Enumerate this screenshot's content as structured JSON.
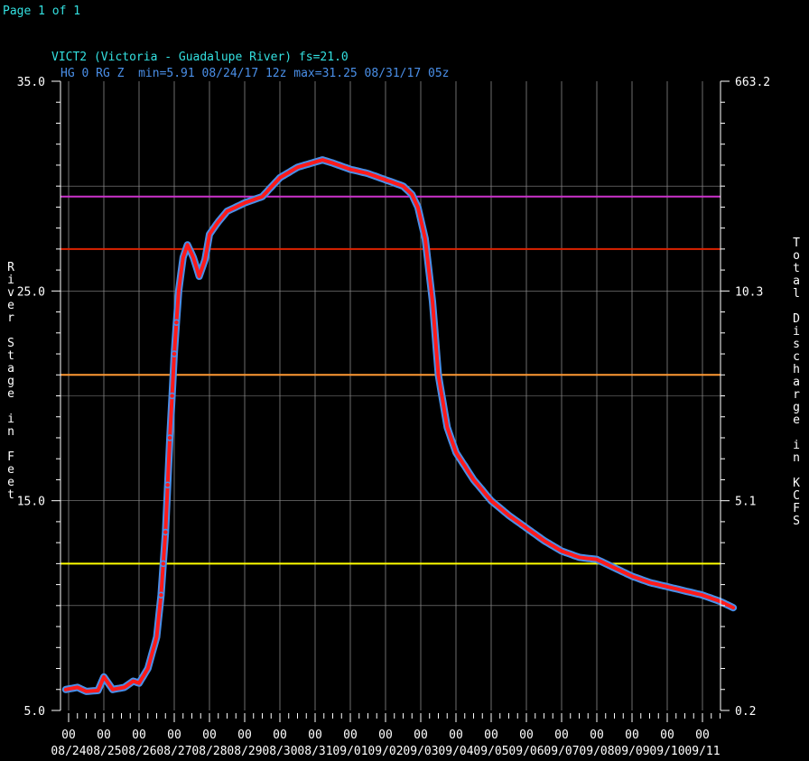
{
  "page_label": "Page 1 of 1",
  "chart_data": {
    "type": "line",
    "title": "VICT2 (Victoria - Guadalupe River) fs=21.0",
    "subtitle": "HG 0 RG Z  min=5.91 08/24/17 12z max=31.25 08/31/17 05z",
    "ylabel": "River Stage in Feet",
    "y2label": "Total Discharge in KCFS",
    "ylim": [
      5.0,
      35.0
    ],
    "y_ticks": [
      "35.0",
      "25.0",
      "15.0",
      "5.0"
    ],
    "y2_ticks": [
      "663.2",
      "10.3",
      "5.1",
      "0.2"
    ],
    "x_range_days": [
      "08/24/17 00z",
      "09/12/17 06z"
    ],
    "x_hour_labels": [
      "00",
      "00",
      "00",
      "00",
      "00",
      "00",
      "00",
      "00",
      "00",
      "00",
      "00",
      "00",
      "00",
      "00",
      "00",
      "00",
      "00",
      "00",
      "00"
    ],
    "x_date_labels": [
      "08/24",
      "08/25",
      "08/26",
      "08/27",
      "08/28",
      "08/29",
      "08/30",
      "08/31",
      "09/01",
      "09/02",
      "09/03",
      "09/04",
      "09/05",
      "09/06",
      "09/07",
      "09/08",
      "09/09",
      "09/10",
      "09/11"
    ],
    "thresholds": [
      {
        "stage": 29.5,
        "color": "#cc33cc"
      },
      {
        "stage": 27.0,
        "color": "#dd2200"
      },
      {
        "stage": 21.0,
        "color": "#ff9933"
      },
      {
        "stage": 12.0,
        "color": "#ffff00"
      }
    ],
    "grid": true,
    "series": [
      {
        "line_color": "#ff1a1a",
        "marker_color": "#4a8fe8",
        "points": [
          [
            "08/23 22z",
            6.0
          ],
          [
            "08/24 06z",
            6.1
          ],
          [
            "08/24 12z",
            5.91
          ],
          [
            "08/24 20z",
            5.95
          ],
          [
            "08/25 00z",
            6.6
          ],
          [
            "08/25 06z",
            6.0
          ],
          [
            "08/25 14z",
            6.1
          ],
          [
            "08/25 20z",
            6.4
          ],
          [
            "08/26 00z",
            6.3
          ],
          [
            "08/26 06z",
            7.0
          ],
          [
            "08/26 12z",
            8.5
          ],
          [
            "08/26 15z",
            10.5
          ],
          [
            "08/26 18z",
            13.5
          ],
          [
            "08/26 21z",
            18.0
          ],
          [
            "08/27 00z",
            22.0
          ],
          [
            "08/27 03z",
            25.0
          ],
          [
            "08/27 06z",
            26.6
          ],
          [
            "08/27 09z",
            27.2
          ],
          [
            "08/27 13z",
            26.6
          ],
          [
            "08/27 17z",
            25.7
          ],
          [
            "08/27 21z",
            26.5
          ],
          [
            "08/28 00z",
            27.7
          ],
          [
            "08/28 06z",
            28.3
          ],
          [
            "08/28 12z",
            28.8
          ],
          [
            "08/29 00z",
            29.2
          ],
          [
            "08/29 12z",
            29.5
          ],
          [
            "08/30 00z",
            30.4
          ],
          [
            "08/30 12z",
            30.9
          ],
          [
            "08/31 05z",
            31.25
          ],
          [
            "08/31 12z",
            31.1
          ],
          [
            "09/01 00z",
            30.8
          ],
          [
            "09/01 12z",
            30.6
          ],
          [
            "09/02 00z",
            30.3
          ],
          [
            "09/02 12z",
            30.0
          ],
          [
            "09/02 18z",
            29.6
          ],
          [
            "09/02 22z",
            29.0
          ],
          [
            "09/03 03z",
            27.5
          ],
          [
            "09/03 08z",
            24.5
          ],
          [
            "09/03 12z",
            21.0
          ],
          [
            "09/03 18z",
            18.5
          ],
          [
            "09/04 00z",
            17.3
          ],
          [
            "09/04 12z",
            16.0
          ],
          [
            "09/05 00z",
            15.0
          ],
          [
            "09/05 12z",
            14.3
          ],
          [
            "09/06 00z",
            13.7
          ],
          [
            "09/06 12z",
            13.1
          ],
          [
            "09/07 00z",
            12.6
          ],
          [
            "09/07 12z",
            12.3
          ],
          [
            "09/08 00z",
            12.2
          ],
          [
            "09/08 12z",
            11.8
          ],
          [
            "09/09 00z",
            11.4
          ],
          [
            "09/09 12z",
            11.1
          ],
          [
            "09/10 00z",
            10.9
          ],
          [
            "09/10 12z",
            10.7
          ],
          [
            "09/11 00z",
            10.5
          ],
          [
            "09/11 12z",
            10.2
          ],
          [
            "09/11 21z",
            9.9
          ]
        ]
      }
    ]
  }
}
